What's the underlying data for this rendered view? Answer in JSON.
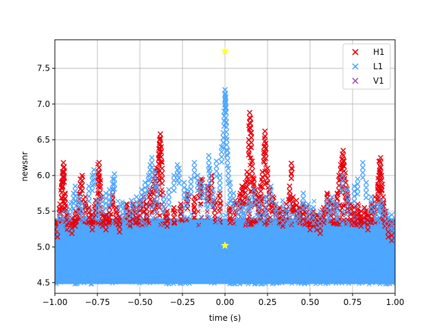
{
  "chart_data": {
    "type": "scatter",
    "title": "",
    "xlabel": "time (s)",
    "ylabel": "newsnr",
    "xlim": [
      -1.0,
      1.0
    ],
    "ylim": [
      4.35,
      7.9
    ],
    "grid": true,
    "legend_placement": "top-right",
    "x_ticks": [
      -1.0,
      -0.75,
      -0.5,
      -0.25,
      0.0,
      0.25,
      0.5,
      0.75,
      1.0
    ],
    "x_tick_labels": [
      "−1.00",
      "−0.75",
      "−0.50",
      "−0.25",
      "0.00",
      "0.25",
      "0.50",
      "0.75",
      "1.00"
    ],
    "y_ticks": [
      4.5,
      5.0,
      5.5,
      6.0,
      6.5,
      7.0,
      7.5
    ],
    "y_tick_labels": [
      "4.5",
      "5.0",
      "5.5",
      "6.0",
      "6.5",
      "7.0",
      "7.5"
    ],
    "series": [
      {
        "name": "H1",
        "color": "#e8000b",
        "marker": "x",
        "points": [
          [
            -0.985,
            5.35
          ],
          [
            -0.97,
            5.6
          ],
          [
            -0.96,
            5.9
          ],
          [
            -0.955,
            6.05
          ],
          [
            -0.95,
            6.18
          ],
          [
            -0.945,
            6.12
          ],
          [
            -0.94,
            5.75
          ],
          [
            -0.93,
            5.45
          ],
          [
            -0.9,
            5.4
          ],
          [
            -0.88,
            5.5
          ],
          [
            -0.86,
            5.62
          ],
          [
            -0.85,
            5.95
          ],
          [
            -0.84,
            6.0
          ],
          [
            -0.82,
            5.7
          ],
          [
            -0.8,
            5.55
          ],
          [
            -0.78,
            5.45
          ],
          [
            -0.76,
            5.65
          ],
          [
            -0.745,
            6.05
          ],
          [
            -0.74,
            6.18
          ],
          [
            -0.735,
            5.9
          ],
          [
            -0.72,
            5.5
          ],
          [
            -0.7,
            5.45
          ],
          [
            -0.68,
            5.55
          ],
          [
            -0.66,
            5.8
          ],
          [
            -0.64,
            5.55
          ],
          [
            -0.62,
            5.42
          ],
          [
            -0.58,
            5.6
          ],
          [
            -0.56,
            5.5
          ],
          [
            -0.54,
            5.6
          ],
          [
            -0.52,
            5.55
          ],
          [
            -0.5,
            5.65
          ],
          [
            -0.48,
            5.7
          ],
          [
            -0.46,
            5.6
          ],
          [
            -0.44,
            5.8
          ],
          [
            -0.42,
            5.95
          ],
          [
            -0.41,
            6.0
          ],
          [
            -0.4,
            6.1
          ],
          [
            -0.39,
            6.3
          ],
          [
            -0.385,
            6.5
          ],
          [
            -0.38,
            6.58
          ],
          [
            -0.375,
            6.4
          ],
          [
            -0.37,
            6.1
          ],
          [
            -0.36,
            5.7
          ],
          [
            -0.34,
            5.5
          ],
          [
            -0.3,
            5.55
          ],
          [
            -0.26,
            5.6
          ],
          [
            -0.22,
            5.75
          ],
          [
            -0.18,
            5.7
          ],
          [
            -0.15,
            5.9
          ],
          [
            -0.14,
            5.95
          ],
          [
            -0.1,
            5.85
          ],
          [
            -0.08,
            6.0
          ],
          [
            -0.06,
            5.65
          ],
          [
            -0.03,
            5.75
          ],
          [
            0.03,
            5.55
          ],
          [
            0.06,
            5.65
          ],
          [
            0.09,
            5.75
          ],
          [
            0.1,
            5.85
          ],
          [
            0.12,
            5.9
          ],
          [
            0.13,
            6.05
          ],
          [
            0.14,
            6.5
          ],
          [
            0.145,
            6.88
          ],
          [
            0.15,
            6.8
          ],
          [
            0.155,
            6.6
          ],
          [
            0.16,
            6.2
          ],
          [
            0.17,
            5.95
          ],
          [
            0.18,
            5.8
          ],
          [
            0.2,
            5.7
          ],
          [
            0.21,
            5.85
          ],
          [
            0.22,
            6.05
          ],
          [
            0.23,
            6.4
          ],
          [
            0.235,
            6.62
          ],
          [
            0.24,
            6.45
          ],
          [
            0.25,
            6.1
          ],
          [
            0.26,
            5.8
          ],
          [
            0.28,
            5.7
          ],
          [
            0.3,
            5.6
          ],
          [
            0.32,
            5.55
          ],
          [
            0.34,
            5.5
          ],
          [
            0.36,
            5.6
          ],
          [
            0.38,
            5.85
          ],
          [
            0.39,
            6.17
          ],
          [
            0.4,
            5.7
          ],
          [
            0.42,
            5.65
          ],
          [
            0.44,
            5.55
          ],
          [
            0.46,
            5.6
          ],
          [
            0.48,
            5.55
          ],
          [
            0.5,
            5.45
          ],
          [
            0.52,
            5.5
          ],
          [
            0.54,
            5.45
          ],
          [
            0.56,
            5.4
          ],
          [
            0.58,
            5.55
          ],
          [
            0.6,
            5.75
          ],
          [
            0.62,
            5.65
          ],
          [
            0.64,
            5.6
          ],
          [
            0.66,
            5.75
          ],
          [
            0.67,
            6.0
          ],
          [
            0.68,
            6.15
          ],
          [
            0.69,
            6.3
          ],
          [
            0.695,
            6.35
          ],
          [
            0.7,
            6.2
          ],
          [
            0.71,
            5.9
          ],
          [
            0.72,
            5.75
          ],
          [
            0.74,
            5.6
          ],
          [
            0.76,
            5.55
          ],
          [
            0.78,
            5.6
          ],
          [
            0.8,
            5.5
          ],
          [
            0.82,
            5.55
          ],
          [
            0.84,
            5.45
          ],
          [
            0.86,
            5.6
          ],
          [
            0.88,
            5.7
          ],
          [
            0.9,
            5.85
          ],
          [
            0.905,
            6.0
          ],
          [
            0.91,
            6.2
          ],
          [
            0.915,
            6.25
          ],
          [
            0.92,
            6.0
          ],
          [
            0.93,
            5.7
          ],
          [
            0.94,
            5.5
          ],
          [
            0.96,
            5.35
          ],
          [
            0.98,
            5.3
          ]
        ]
      },
      {
        "name": "L1",
        "color": "#4da6ff",
        "marker": "x",
        "points": [
          [
            -0.97,
            5.45
          ],
          [
            -0.95,
            5.3
          ],
          [
            -0.91,
            5.6
          ],
          [
            -0.89,
            5.75
          ],
          [
            -0.88,
            5.85
          ],
          [
            -0.86,
            5.7
          ],
          [
            -0.84,
            5.6
          ],
          [
            -0.8,
            5.85
          ],
          [
            -0.78,
            6.0
          ],
          [
            -0.77,
            6.08
          ],
          [
            -0.75,
            5.65
          ],
          [
            -0.72,
            5.7
          ],
          [
            -0.7,
            5.75
          ],
          [
            -0.68,
            5.8
          ],
          [
            -0.66,
            5.95
          ],
          [
            -0.65,
            6.02
          ],
          [
            -0.6,
            5.6
          ],
          [
            -0.58,
            5.5
          ],
          [
            -0.55,
            5.65
          ],
          [
            -0.52,
            5.7
          ],
          [
            -0.49,
            5.8
          ],
          [
            -0.47,
            5.9
          ],
          [
            -0.45,
            6.0
          ],
          [
            -0.44,
            6.15
          ],
          [
            -0.43,
            6.25
          ],
          [
            -0.41,
            6.05
          ],
          [
            -0.4,
            5.85
          ],
          [
            -0.36,
            5.7
          ],
          [
            -0.33,
            5.8
          ],
          [
            -0.3,
            6.0
          ],
          [
            -0.28,
            6.15
          ],
          [
            -0.27,
            6.1
          ],
          [
            -0.24,
            5.9
          ],
          [
            -0.22,
            5.8
          ],
          [
            -0.2,
            5.95
          ],
          [
            -0.18,
            6.18
          ],
          [
            -0.16,
            6.0
          ],
          [
            -0.14,
            5.9
          ],
          [
            -0.11,
            5.85
          ],
          [
            -0.09,
            6.1
          ],
          [
            -0.095,
            6.28
          ],
          [
            -0.07,
            5.8
          ],
          [
            -0.05,
            6.2
          ],
          [
            -0.03,
            6.0
          ],
          [
            -0.02,
            6.4
          ],
          [
            -0.01,
            6.6
          ],
          [
            -0.005,
            6.9
          ],
          [
            0.0,
            7.2
          ],
          [
            0.002,
            7.15
          ],
          [
            0.004,
            7.1
          ],
          [
            0.006,
            6.95
          ],
          [
            0.008,
            6.75
          ],
          [
            0.01,
            6.5
          ],
          [
            0.015,
            6.35
          ],
          [
            0.02,
            6.1
          ],
          [
            0.03,
            5.9
          ],
          [
            0.05,
            5.75
          ],
          [
            0.08,
            5.6
          ],
          [
            0.11,
            5.55
          ],
          [
            0.14,
            5.7
          ],
          [
            0.17,
            5.8
          ],
          [
            0.2,
            5.65
          ],
          [
            0.24,
            5.7
          ],
          [
            0.27,
            5.85
          ],
          [
            0.3,
            5.6
          ],
          [
            0.34,
            5.55
          ],
          [
            0.37,
            5.5
          ],
          [
            0.4,
            5.45
          ],
          [
            0.43,
            5.5
          ],
          [
            0.46,
            5.75
          ],
          [
            0.49,
            5.6
          ],
          [
            0.52,
            5.55
          ],
          [
            0.56,
            5.5
          ],
          [
            0.6,
            5.65
          ],
          [
            0.63,
            5.7
          ],
          [
            0.66,
            5.6
          ],
          [
            0.69,
            6.0
          ],
          [
            0.72,
            5.8
          ],
          [
            0.76,
            5.85
          ],
          [
            0.78,
            5.95
          ],
          [
            0.81,
            6.18
          ],
          [
            0.83,
            5.9
          ],
          [
            0.86,
            5.7
          ],
          [
            0.89,
            5.6
          ],
          [
            0.92,
            5.65
          ],
          [
            0.95,
            5.5
          ],
          [
            0.98,
            5.45
          ]
        ],
        "band": {
          "y_min": 4.48,
          "y_max": 5.4,
          "note": "dense cloud of markers across the full time range"
        }
      },
      {
        "name": "V1",
        "color": "#9b59b6",
        "marker": "x",
        "points": []
      }
    ],
    "highlights": [
      {
        "x": 0.0,
        "y": 7.74,
        "color": "#ffff33",
        "marker": "star"
      },
      {
        "x": 0.0,
        "y": 5.02,
        "color": "#ffff33",
        "marker": "star"
      }
    ]
  }
}
